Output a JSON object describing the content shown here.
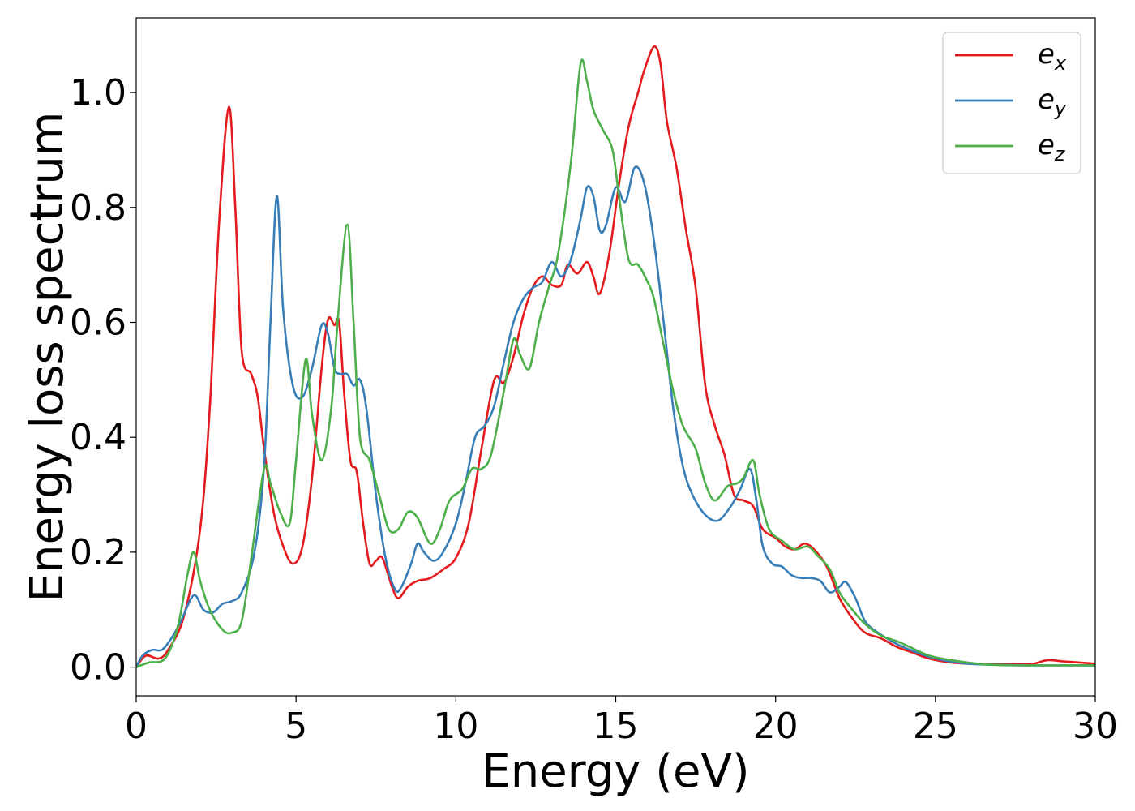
{
  "chart_data": {
    "type": "line",
    "xlabel": "Energy (eV)",
    "ylabel": "Energy loss spectrum",
    "xlim": [
      0,
      30
    ],
    "ylim": [
      -0.05,
      1.13
    ],
    "xticks": [
      0,
      5,
      10,
      15,
      20,
      25,
      30
    ],
    "xtick_labels": [
      "0",
      "5",
      "10",
      "15",
      "20",
      "25",
      "30"
    ],
    "yticks": [
      0.0,
      0.2,
      0.4,
      0.6,
      0.8,
      1.0
    ],
    "ytick_labels": [
      "0.0",
      "0.2",
      "0.4",
      "0.6",
      "0.8",
      "1.0"
    ],
    "legend_position": "top-right",
    "series": [
      {
        "name": "e_x",
        "legend_base": "e",
        "legend_sub": "x",
        "color": "#e41a1c",
        "points": [
          [
            0,
            0.0
          ],
          [
            0.3,
            0.02
          ],
          [
            0.7,
            0.015
          ],
          [
            1.0,
            0.03
          ],
          [
            1.5,
            0.09
          ],
          [
            2.0,
            0.24
          ],
          [
            2.3,
            0.45
          ],
          [
            2.6,
            0.78
          ],
          [
            2.9,
            0.975
          ],
          [
            3.1,
            0.8
          ],
          [
            3.3,
            0.55
          ],
          [
            3.6,
            0.51
          ],
          [
            3.8,
            0.47
          ],
          [
            4.0,
            0.38
          ],
          [
            4.3,
            0.27
          ],
          [
            4.6,
            0.21
          ],
          [
            4.9,
            0.18
          ],
          [
            5.2,
            0.21
          ],
          [
            5.5,
            0.33
          ],
          [
            5.8,
            0.52
          ],
          [
            6.0,
            0.605
          ],
          [
            6.2,
            0.595
          ],
          [
            6.35,
            0.6
          ],
          [
            6.5,
            0.48
          ],
          [
            6.7,
            0.36
          ],
          [
            6.9,
            0.34
          ],
          [
            7.1,
            0.25
          ],
          [
            7.3,
            0.18
          ],
          [
            7.5,
            0.185
          ],
          [
            7.7,
            0.19
          ],
          [
            8.0,
            0.14
          ],
          [
            8.2,
            0.12
          ],
          [
            8.5,
            0.14
          ],
          [
            8.8,
            0.15
          ],
          [
            9.2,
            0.155
          ],
          [
            9.6,
            0.17
          ],
          [
            10.0,
            0.19
          ],
          [
            10.4,
            0.25
          ],
          [
            10.8,
            0.38
          ],
          [
            11.2,
            0.5
          ],
          [
            11.5,
            0.495
          ],
          [
            11.8,
            0.54
          ],
          [
            12.1,
            0.61
          ],
          [
            12.4,
            0.66
          ],
          [
            12.7,
            0.68
          ],
          [
            13.0,
            0.665
          ],
          [
            13.3,
            0.665
          ],
          [
            13.5,
            0.7
          ],
          [
            13.8,
            0.685
          ],
          [
            14.1,
            0.705
          ],
          [
            14.3,
            0.68
          ],
          [
            14.5,
            0.65
          ],
          [
            14.8,
            0.72
          ],
          [
            15.1,
            0.84
          ],
          [
            15.4,
            0.94
          ],
          [
            15.7,
            1.0
          ],
          [
            15.9,
            1.04
          ],
          [
            16.2,
            1.08
          ],
          [
            16.4,
            1.05
          ],
          [
            16.6,
            0.95
          ],
          [
            16.9,
            0.87
          ],
          [
            17.2,
            0.76
          ],
          [
            17.5,
            0.66
          ],
          [
            17.8,
            0.49
          ],
          [
            18.1,
            0.42
          ],
          [
            18.4,
            0.37
          ],
          [
            18.7,
            0.3
          ],
          [
            19.0,
            0.29
          ],
          [
            19.3,
            0.28
          ],
          [
            19.6,
            0.24
          ],
          [
            20.0,
            0.225
          ],
          [
            20.3,
            0.21
          ],
          [
            20.6,
            0.205
          ],
          [
            20.9,
            0.215
          ],
          [
            21.2,
            0.205
          ],
          [
            21.6,
            0.175
          ],
          [
            22.0,
            0.12
          ],
          [
            22.4,
            0.085
          ],
          [
            22.8,
            0.06
          ],
          [
            23.3,
            0.05
          ],
          [
            23.8,
            0.035
          ],
          [
            24.3,
            0.025
          ],
          [
            24.8,
            0.015
          ],
          [
            25.5,
            0.008
          ],
          [
            26.5,
            0.005
          ],
          [
            27.5,
            0.005
          ],
          [
            28.0,
            0.005
          ],
          [
            28.5,
            0.012
          ],
          [
            29.0,
            0.01
          ],
          [
            29.5,
            0.008
          ],
          [
            30.0,
            0.006
          ]
        ]
      },
      {
        "name": "e_y",
        "legend_base": "e",
        "legend_sub": "y",
        "color": "#377eb8",
        "points": [
          [
            0,
            0.0
          ],
          [
            0.2,
            0.02
          ],
          [
            0.5,
            0.03
          ],
          [
            0.8,
            0.03
          ],
          [
            1.1,
            0.05
          ],
          [
            1.4,
            0.08
          ],
          [
            1.8,
            0.125
          ],
          [
            2.1,
            0.1
          ],
          [
            2.4,
            0.095
          ],
          [
            2.7,
            0.11
          ],
          [
            3.0,
            0.115
          ],
          [
            3.3,
            0.13
          ],
          [
            3.7,
            0.2
          ],
          [
            4.0,
            0.35
          ],
          [
            4.2,
            0.6
          ],
          [
            4.4,
            0.82
          ],
          [
            4.6,
            0.62
          ],
          [
            4.9,
            0.49
          ],
          [
            5.2,
            0.47
          ],
          [
            5.5,
            0.52
          ],
          [
            5.8,
            0.595
          ],
          [
            6.0,
            0.58
          ],
          [
            6.2,
            0.52
          ],
          [
            6.4,
            0.51
          ],
          [
            6.6,
            0.51
          ],
          [
            6.8,
            0.49
          ],
          [
            7.0,
            0.5
          ],
          [
            7.2,
            0.45
          ],
          [
            7.5,
            0.3
          ],
          [
            7.8,
            0.19
          ],
          [
            8.1,
            0.135
          ],
          [
            8.3,
            0.14
          ],
          [
            8.6,
            0.18
          ],
          [
            8.8,
            0.215
          ],
          [
            9.0,
            0.2
          ],
          [
            9.3,
            0.185
          ],
          [
            9.6,
            0.2
          ],
          [
            10.0,
            0.25
          ],
          [
            10.3,
            0.32
          ],
          [
            10.6,
            0.4
          ],
          [
            10.9,
            0.42
          ],
          [
            11.2,
            0.455
          ],
          [
            11.5,
            0.53
          ],
          [
            11.8,
            0.6
          ],
          [
            12.1,
            0.64
          ],
          [
            12.4,
            0.66
          ],
          [
            12.7,
            0.67
          ],
          [
            13.0,
            0.705
          ],
          [
            13.3,
            0.68
          ],
          [
            13.6,
            0.71
          ],
          [
            13.9,
            0.78
          ],
          [
            14.1,
            0.835
          ],
          [
            14.3,
            0.82
          ],
          [
            14.5,
            0.76
          ],
          [
            14.7,
            0.77
          ],
          [
            15.0,
            0.835
          ],
          [
            15.3,
            0.81
          ],
          [
            15.6,
            0.87
          ],
          [
            15.9,
            0.84
          ],
          [
            16.2,
            0.74
          ],
          [
            16.5,
            0.6
          ],
          [
            16.8,
            0.45
          ],
          [
            17.1,
            0.35
          ],
          [
            17.4,
            0.3
          ],
          [
            17.8,
            0.265
          ],
          [
            18.2,
            0.255
          ],
          [
            18.6,
            0.28
          ],
          [
            18.9,
            0.31
          ],
          [
            19.2,
            0.345
          ],
          [
            19.4,
            0.29
          ],
          [
            19.6,
            0.21
          ],
          [
            19.9,
            0.18
          ],
          [
            20.2,
            0.175
          ],
          [
            20.5,
            0.16
          ],
          [
            20.8,
            0.155
          ],
          [
            21.1,
            0.155
          ],
          [
            21.4,
            0.15
          ],
          [
            21.7,
            0.13
          ],
          [
            22.0,
            0.14
          ],
          [
            22.2,
            0.148
          ],
          [
            22.5,
            0.12
          ],
          [
            22.8,
            0.08
          ],
          [
            23.2,
            0.06
          ],
          [
            23.8,
            0.04
          ],
          [
            24.3,
            0.028
          ],
          [
            25.0,
            0.015
          ],
          [
            26.0,
            0.006
          ],
          [
            27.0,
            0.004
          ],
          [
            28.0,
            0.003
          ],
          [
            29.0,
            0.003
          ],
          [
            30.0,
            0.003
          ]
        ]
      },
      {
        "name": "e_z",
        "legend_base": "e",
        "legend_sub": "z",
        "color": "#4daf4a",
        "points": [
          [
            0,
            0.0
          ],
          [
            0.4,
            0.008
          ],
          [
            0.9,
            0.015
          ],
          [
            1.3,
            0.07
          ],
          [
            1.6,
            0.16
          ],
          [
            1.8,
            0.2
          ],
          [
            2.0,
            0.15
          ],
          [
            2.3,
            0.1
          ],
          [
            2.7,
            0.065
          ],
          [
            3.0,
            0.06
          ],
          [
            3.3,
            0.08
          ],
          [
            3.6,
            0.19
          ],
          [
            4.0,
            0.345
          ],
          [
            4.2,
            0.32
          ],
          [
            4.5,
            0.27
          ],
          [
            4.8,
            0.25
          ],
          [
            5.0,
            0.36
          ],
          [
            5.3,
            0.535
          ],
          [
            5.5,
            0.44
          ],
          [
            5.8,
            0.36
          ],
          [
            6.1,
            0.45
          ],
          [
            6.3,
            0.6
          ],
          [
            6.6,
            0.77
          ],
          [
            6.8,
            0.6
          ],
          [
            7.0,
            0.4
          ],
          [
            7.3,
            0.36
          ],
          [
            7.6,
            0.3
          ],
          [
            7.9,
            0.24
          ],
          [
            8.2,
            0.24
          ],
          [
            8.5,
            0.27
          ],
          [
            8.8,
            0.26
          ],
          [
            9.2,
            0.215
          ],
          [
            9.5,
            0.24
          ],
          [
            9.8,
            0.29
          ],
          [
            10.2,
            0.31
          ],
          [
            10.5,
            0.345
          ],
          [
            10.8,
            0.345
          ],
          [
            11.1,
            0.37
          ],
          [
            11.5,
            0.48
          ],
          [
            11.8,
            0.57
          ],
          [
            12.0,
            0.545
          ],
          [
            12.3,
            0.52
          ],
          [
            12.6,
            0.6
          ],
          [
            12.9,
            0.66
          ],
          [
            13.2,
            0.72
          ],
          [
            13.6,
            0.88
          ],
          [
            13.9,
            1.05
          ],
          [
            14.1,
            1.02
          ],
          [
            14.3,
            0.97
          ],
          [
            14.6,
            0.935
          ],
          [
            14.9,
            0.9
          ],
          [
            15.1,
            0.82
          ],
          [
            15.4,
            0.71
          ],
          [
            15.7,
            0.7
          ],
          [
            16.0,
            0.67
          ],
          [
            16.2,
            0.64
          ],
          [
            16.5,
            0.56
          ],
          [
            16.8,
            0.48
          ],
          [
            17.1,
            0.42
          ],
          [
            17.5,
            0.38
          ],
          [
            17.8,
            0.32
          ],
          [
            18.1,
            0.29
          ],
          [
            18.5,
            0.315
          ],
          [
            18.8,
            0.32
          ],
          [
            19.0,
            0.33
          ],
          [
            19.3,
            0.36
          ],
          [
            19.5,
            0.3
          ],
          [
            19.8,
            0.24
          ],
          [
            20.2,
            0.22
          ],
          [
            20.6,
            0.205
          ],
          [
            21.0,
            0.21
          ],
          [
            21.3,
            0.195
          ],
          [
            21.7,
            0.17
          ],
          [
            22.0,
            0.13
          ],
          [
            22.4,
            0.1
          ],
          [
            22.8,
            0.075
          ],
          [
            23.3,
            0.055
          ],
          [
            23.8,
            0.045
          ],
          [
            24.2,
            0.035
          ],
          [
            24.8,
            0.02
          ],
          [
            25.5,
            0.012
          ],
          [
            26.5,
            0.005
          ],
          [
            27.5,
            0.003
          ],
          [
            28.5,
            0.003
          ],
          [
            30.0,
            0.003
          ]
        ]
      }
    ]
  }
}
